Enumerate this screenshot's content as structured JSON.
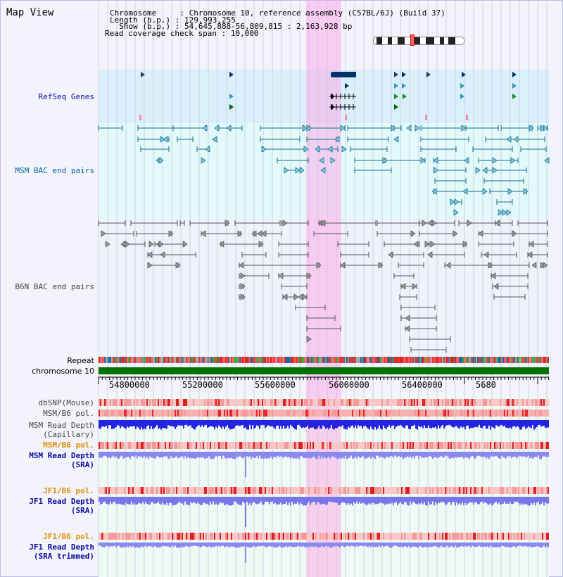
{
  "title": "Map View",
  "info": {
    "chromosome_key": "Chromosome     ",
    "chromosome_val": ": Chromosome 10, reference assembly (C57BL/6J) (Build 37)",
    "length_key": "Length (b.p.) ",
    "length_val": ": 129,993,255",
    "show_key": "  Show (b.p.) ",
    "show_val": ": 54,645,888-56,809,815 : 2,163,928 bp",
    "coverage_key": "Read coverage check span",
    "coverage_val": ": 10,000"
  },
  "tracks": {
    "refseq": "RefSeq Genes",
    "msm_bac": "MSM BAC end pairs",
    "b6n_bac": "B6N BAC end pairs",
    "repeat": "Repeat",
    "chromosome": "chromosome 10",
    "dbsnp": "dbSNP(Mouse)",
    "msm_b6_pol": "MSM/B6 pol.",
    "msm_read_depth_cap_1": "MSM Read Depth",
    "msm_read_depth_cap_2": "(Capillary)",
    "msm_b6_pol_2": "MSM/B6 pol.",
    "msm_read_depth_sra_1": "MSM Read Depth",
    "msm_read_depth_sra_2": "(SRA)",
    "jf1_b6_pol": "JF1/B6 pol.",
    "jf1_read_depth_sra_1": "JF1 Read Depth",
    "jf1_read_depth_sra_2": "(SRA)",
    "jf1_b6_pol_2": "JF1/B6 pol.",
    "jf1_read_depth_trim_1": "JF1 Read Depth",
    "jf1_read_depth_trim_2": "(SRA trimmed)"
  },
  "axis": {
    "ticks": [
      "54800000",
      "55200000",
      "55600000",
      "56000000",
      "56400000",
      "5680"
    ]
  },
  "colors": {
    "refseq_bg": "#d9effa",
    "msm_bg": "#e0fafa",
    "b6n_bg": "#eef4fc",
    "lower_bg": "#e8fbf0",
    "chrom_bar": "#007000",
    "highlight": "#ffa0e6",
    "read_depth_dark": "#2020e0",
    "read_depth_light": "#8888f0"
  }
}
